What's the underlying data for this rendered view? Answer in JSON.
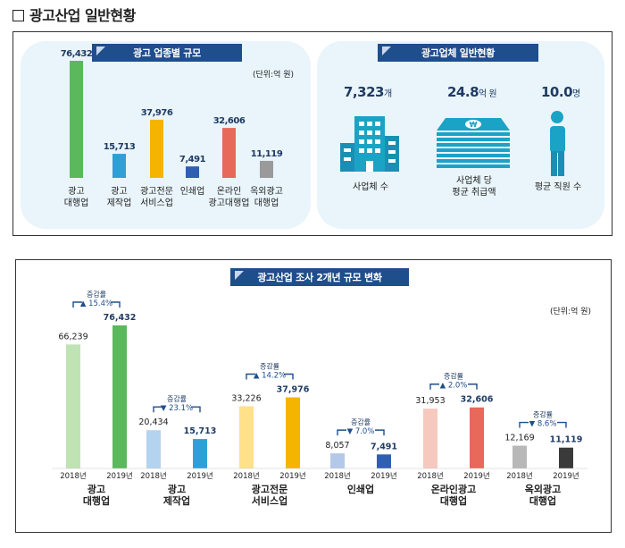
{
  "page": {
    "title": "광고산업 일반현황"
  },
  "section1": {
    "left_banner": "광고 업종별 규모",
    "right_banner": "광고업체 일반현황",
    "unit": "(단위:억 원)",
    "stats": [
      {
        "value": "7,323",
        "unit": "개",
        "label": "사업체 수",
        "icon": "building-icon"
      },
      {
        "value": "24.8",
        "unit": "억 원",
        "label": "사업체 당\n평균 취급액",
        "icon": "money-stack-icon"
      },
      {
        "value": "10.0",
        "unit": "명",
        "label": "평균 직원 수",
        "icon": "person-icon"
      }
    ]
  },
  "section2": {
    "banner": "광고산업 조사 2개년 규모 변화",
    "unit": "(단위:억 원)",
    "change_label": "증감률",
    "year_a": "2018년",
    "year_b": "2019년"
  },
  "chart_data": [
    {
      "type": "bar",
      "title": "광고 업종별 규모",
      "categories": [
        "광고\n대행업",
        "광고\n제작업",
        "광고전문\n서비스업",
        "인쇄업",
        "온라인\n광고대행업",
        "옥외광고\n대행업"
      ],
      "values": [
        76432,
        15713,
        37976,
        7491,
        32606,
        11119
      ],
      "value_labels": [
        "76,432",
        "15,713",
        "37,976",
        "7,491",
        "32,606",
        "11,119"
      ],
      "colors": [
        "#5cb85c",
        "#2f9fd8",
        "#f5b400",
        "#2f5fb3",
        "#e8685a",
        "#9a9a9a"
      ]
    },
    {
      "type": "bar",
      "title": "광고산업 조사 2개년 규모 변화",
      "categories": [
        "광고\n대행업",
        "광고\n제작업",
        "광고전문\n서비스업",
        "인쇄업",
        "온라인광고\n대행업",
        "옥외광고\n대행업"
      ],
      "series": [
        {
          "name": "2018년",
          "values": [
            66239,
            20434,
            33226,
            8057,
            31953,
            12169
          ],
          "value_labels": [
            "66,239",
            "20,434",
            "33,226",
            "8,057",
            "31,953",
            "12,169"
          ]
        },
        {
          "name": "2019년",
          "values": [
            76432,
            15713,
            37976,
            7491,
            32606,
            11119
          ],
          "value_labels": [
            "76,432",
            "15,713",
            "37,976",
            "7,491",
            "32,606",
            "11,119"
          ]
        }
      ],
      "changes": [
        {
          "direction": "up",
          "text": "15.4%"
        },
        {
          "direction": "down",
          "text": "23.1%"
        },
        {
          "direction": "up",
          "text": "14.2%"
        },
        {
          "direction": "down",
          "text": "7.0%"
        },
        {
          "direction": "up",
          "text": "2.0%"
        },
        {
          "direction": "down",
          "text": "8.6%"
        }
      ],
      "colors_2018": [
        "#bfe3b2",
        "#b4d3ee",
        "#ffe18a",
        "#b4c9ea",
        "#f7c8bd",
        "#b8b8b8"
      ],
      "colors_2019": [
        "#5cb85c",
        "#2f9fd8",
        "#f5b400",
        "#2f5fb3",
        "#e8685a",
        "#3a3a3a"
      ]
    }
  ]
}
